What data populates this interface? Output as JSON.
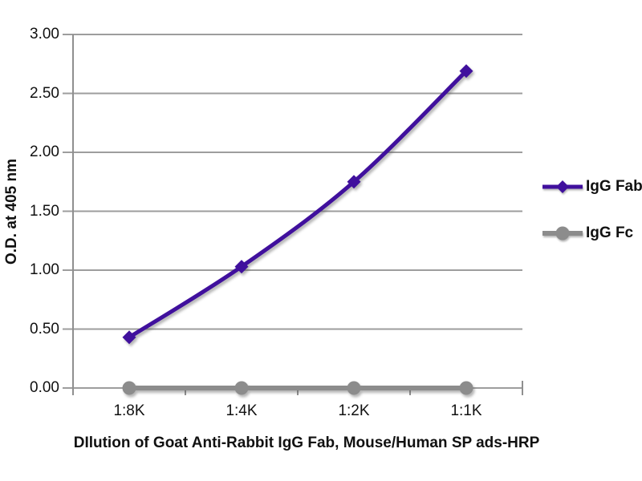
{
  "chart_data": {
    "type": "line",
    "title": "",
    "xlabel": "DIlution of Goat Anti-Rabbit IgG Fab, Mouse/Human SP ads-HRP",
    "ylabel": "O.D. at 405 nm",
    "categories": [
      "1:8K",
      "1:4K",
      "1:2K",
      "1:1K"
    ],
    "series": [
      {
        "name": "IgG Fab",
        "values": [
          0.43,
          1.03,
          1.75,
          2.69
        ],
        "color": "#40109d",
        "marker": "diamond"
      },
      {
        "name": "IgG Fc",
        "values": [
          0.0,
          0.0,
          0.0,
          0.0
        ],
        "color": "#8c8c8c",
        "marker": "circle"
      }
    ],
    "ylim": [
      0,
      3
    ],
    "ytick_step": 0.5,
    "ytick_labels": [
      "0.00",
      "0.50",
      "1.00",
      "1.50",
      "2.00",
      "2.50",
      "3.00"
    ],
    "grid": true,
    "legend_position": "right"
  },
  "colors": {
    "background": "#ffffff",
    "gridline": "#9d9d9d",
    "axis": "#8f8f8f",
    "text": "#111111",
    "igg_fab": "#40109d",
    "igg_fc": "#8c8c8c"
  }
}
